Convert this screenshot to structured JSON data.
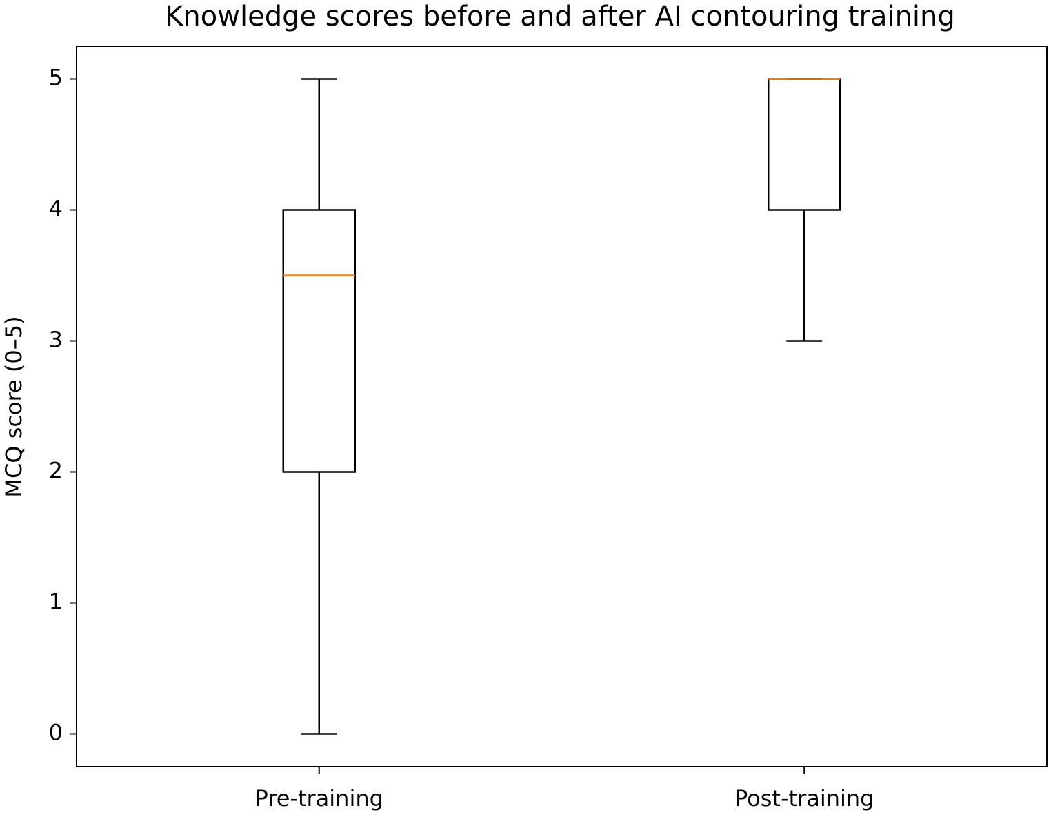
{
  "chart_data": {
    "type": "box",
    "title": "Knowledge scores before and after AI contouring training",
    "y_label": "MCQ score (0–5)",
    "categories": [
      "Pre-training",
      "Post-training"
    ],
    "boxes": [
      {
        "min": 0,
        "q1": 2,
        "median": 3.5,
        "q3": 4,
        "max": 5
      },
      {
        "min": 3,
        "q1": 4,
        "median": 5,
        "q3": 5,
        "max": 5
      }
    ],
    "color": "#000000",
    "median_color": "#ff7f0e",
    "ylim": [
      -0.25,
      5.25
    ],
    "yticks": [
      0,
      1,
      2,
      3,
      4,
      5
    ],
    "grid": false
  }
}
